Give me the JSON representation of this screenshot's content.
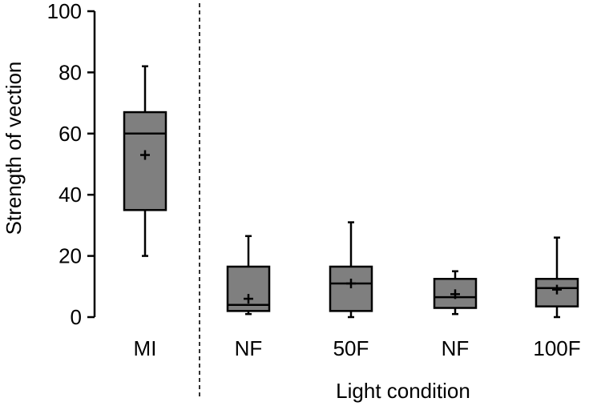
{
  "chart_data": {
    "type": "boxplot",
    "title": "",
    "xlabel": "Light condition",
    "ylabel": "Strength of vection",
    "ylim": [
      0,
      100
    ],
    "yticks": [
      0,
      20,
      40,
      60,
      80,
      100
    ],
    "grid": false,
    "legend": "none",
    "separator_after_index": 0,
    "colors": {
      "box_fill": "#7f7f7f",
      "stroke": "#000000"
    },
    "categories": [
      "MI",
      "NF",
      "50F",
      "NF",
      "100F"
    ],
    "boxes": [
      {
        "label": "MI",
        "min": 20,
        "q1": 35,
        "median": 60,
        "q3": 67,
        "max": 82,
        "mean": 53
      },
      {
        "label": "NF",
        "min": 1,
        "q1": 2,
        "median": 4,
        "q3": 16.5,
        "max": 26.5,
        "mean": 6
      },
      {
        "label": "50F",
        "min": 0,
        "q1": 2,
        "median": 11,
        "q3": 16.5,
        "max": 31,
        "mean": 11
      },
      {
        "label": "NF",
        "min": 1,
        "q1": 3,
        "median": 6.5,
        "q3": 12.5,
        "max": 15,
        "mean": 7.5
      },
      {
        "label": "100F",
        "min": 0,
        "q1": 3.5,
        "median": 9.5,
        "q3": 12.5,
        "max": 26,
        "mean": 9
      }
    ]
  }
}
